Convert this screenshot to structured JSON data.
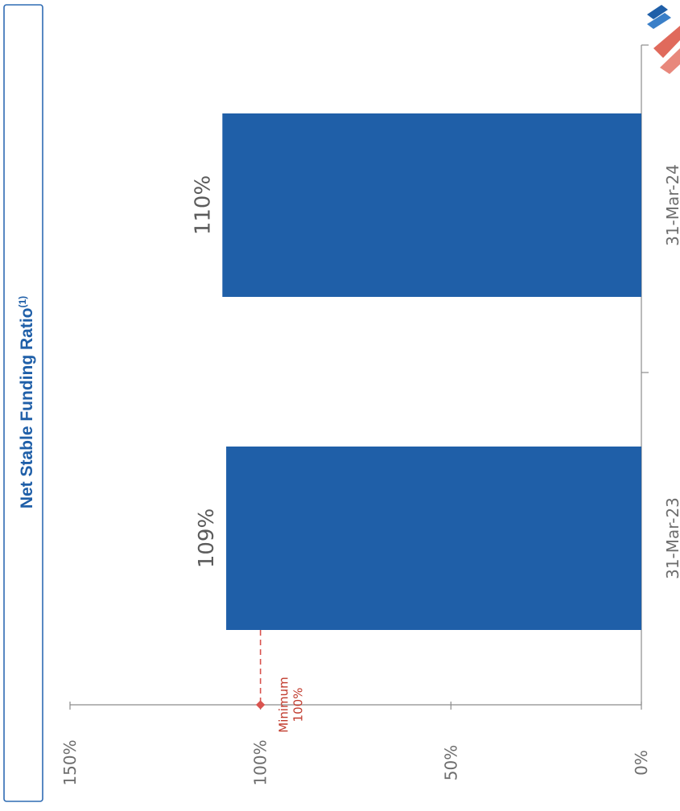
{
  "chart_data": {
    "type": "bar",
    "orientation": "rotated-90",
    "title": "Net Stable Funding Ratio",
    "title_superscript": "(1)",
    "categories": [
      "31-Mar-23",
      "31-Mar-24"
    ],
    "values": [
      109,
      110
    ],
    "data_labels": [
      "109%",
      "110%"
    ],
    "value_ticks": [
      "0%",
      "50%",
      "100%",
      "150%"
    ],
    "ylim": [
      0,
      150
    ],
    "grid": false,
    "reference_line": {
      "value": 100,
      "label_line1": "Minimum",
      "label_line2": "100%"
    },
    "colors": {
      "bar": "#1f5fa8",
      "reference": "#d9534f",
      "title": "#1f5fa8"
    }
  },
  "logo": {
    "name": "bank-logo-icon"
  }
}
